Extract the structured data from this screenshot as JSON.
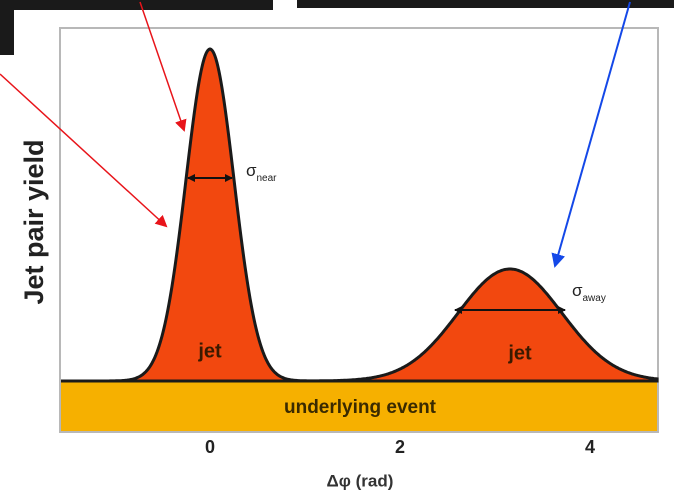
{
  "figure": {
    "y_label": "Jet pair yield",
    "x_label": "Δφ (rad)",
    "x_ticks": [
      "0",
      "2",
      "4"
    ],
    "near_peak": {
      "label": "jet",
      "width": {
        "symbol": "σ",
        "subscript": "near"
      }
    },
    "away_peak": {
      "label": "jet",
      "width": {
        "symbol": "σ",
        "subscript": "away"
      }
    },
    "baseline": {
      "label": "underlying event"
    }
  }
}
